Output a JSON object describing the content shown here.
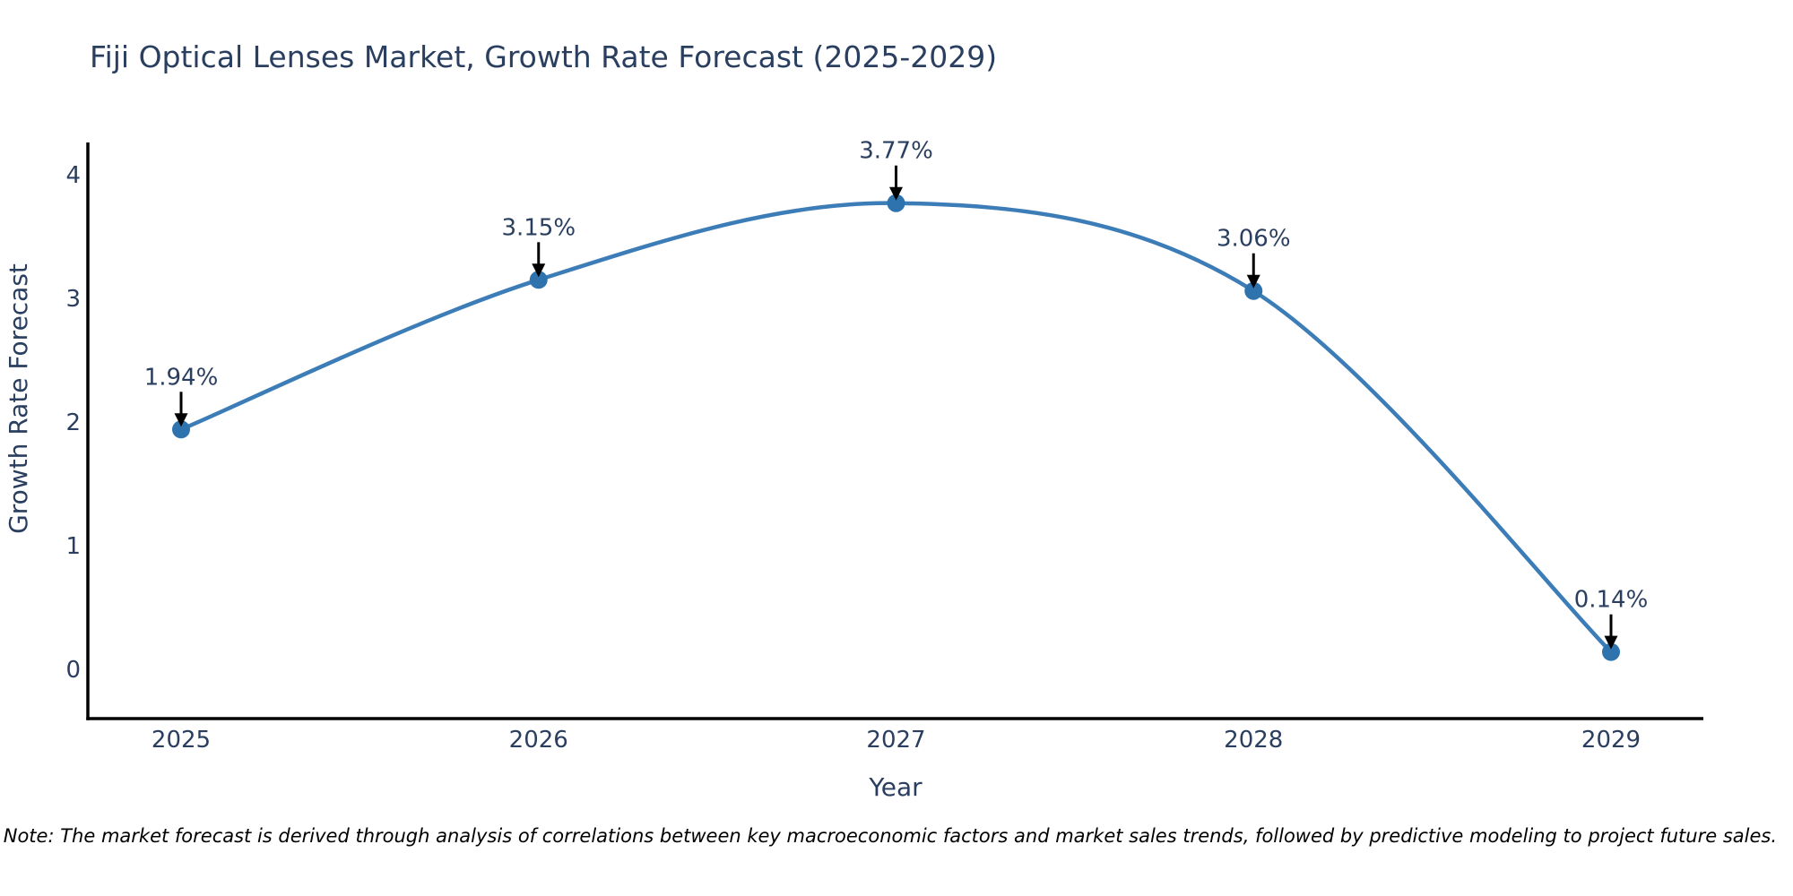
{
  "chart_data": {
    "type": "line",
    "title": "Fiji Optical Lenses Market, Growth Rate Forecast (2025-2029)",
    "xlabel": "Year",
    "ylabel": "Growth Rate Forecast",
    "categories": [
      "2025",
      "2026",
      "2027",
      "2028",
      "2029"
    ],
    "x": [
      2025,
      2026,
      2027,
      2028,
      2029
    ],
    "values": [
      1.94,
      3.15,
      3.77,
      3.06,
      0.14
    ],
    "point_labels": [
      "1.94%",
      "3.15%",
      "3.77%",
      "3.06%",
      "0.14%"
    ],
    "yticks": [
      0,
      1,
      2,
      3,
      4
    ],
    "ylim": [
      0,
      4
    ],
    "line_shape": "spline",
    "grid": false,
    "legend_position": "none",
    "line_color": "#3c7db7",
    "marker_color": "#2f73ae",
    "axis_color": "#000000",
    "text_color": "#2a3f5f",
    "arrow_color": "#000000"
  },
  "note": "Note: The market forecast is derived through analysis of correlations between key macroeconomic factors and market sales trends, followed by predictive modeling to project future sales."
}
